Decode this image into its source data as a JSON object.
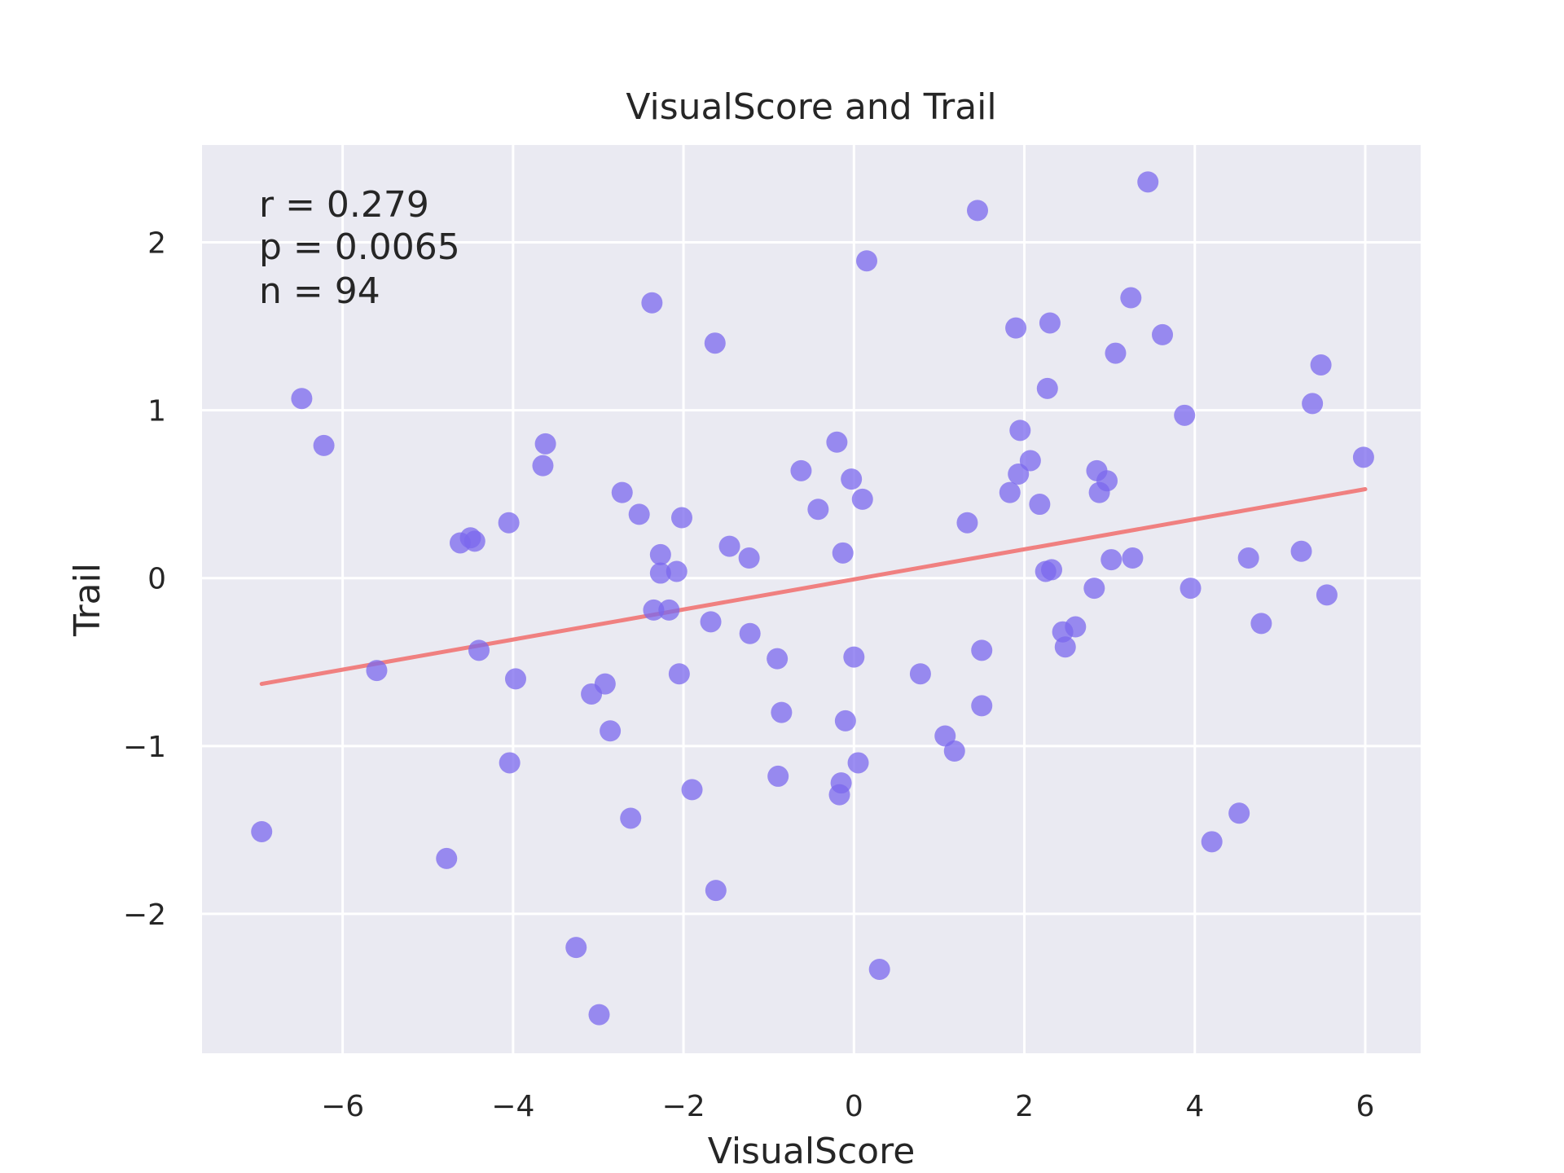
{
  "chart_data": {
    "type": "scatter",
    "title": "VisualScore and Trail",
    "xlabel": "VisualScore",
    "ylabel": "Trail",
    "xlim": [
      -7.65,
      6.65
    ],
    "ylim": [
      -2.83,
      2.58
    ],
    "x_ticks": [
      -6,
      -4,
      -2,
      0,
      2,
      4,
      6
    ],
    "y_ticks": [
      -2,
      -1,
      0,
      1,
      2
    ],
    "x_tick_labels": [
      "−6",
      "−4",
      "−2",
      "0",
      "2",
      "4",
      "6"
    ],
    "y_tick_labels": [
      "−2",
      "−1",
      "0",
      "1",
      "2"
    ],
    "grid": true,
    "point_color": "#7b68ee",
    "line_color": "#f08080",
    "background_color": "#eaeaf2",
    "annotations": [
      "r = 0.279",
      "p = 0.0065",
      "n = 94"
    ],
    "regression_line": {
      "x": [
        -6.95,
        6.0
      ],
      "y": [
        -0.63,
        0.53
      ]
    },
    "points": [
      {
        "x": -6.95,
        "y": -1.51
      },
      {
        "x": -6.48,
        "y": 1.07
      },
      {
        "x": -6.22,
        "y": 0.79
      },
      {
        "x": -5.6,
        "y": -0.55
      },
      {
        "x": -4.78,
        "y": -1.67
      },
      {
        "x": -4.62,
        "y": 0.21
      },
      {
        "x": -4.5,
        "y": 0.24
      },
      {
        "x": -4.45,
        "y": 0.22
      },
      {
        "x": -4.4,
        "y": -0.43
      },
      {
        "x": -4.05,
        "y": 0.33
      },
      {
        "x": -4.04,
        "y": -1.1
      },
      {
        "x": -3.97,
        "y": -0.6
      },
      {
        "x": -3.65,
        "y": 0.67
      },
      {
        "x": -3.62,
        "y": 0.8
      },
      {
        "x": -3.26,
        "y": -2.2
      },
      {
        "x": -3.08,
        "y": -0.69
      },
      {
        "x": -2.99,
        "y": -2.6
      },
      {
        "x": -2.92,
        "y": -0.63
      },
      {
        "x": -2.86,
        "y": -0.91
      },
      {
        "x": -2.72,
        "y": 0.51
      },
      {
        "x": -2.62,
        "y": -1.43
      },
      {
        "x": -2.52,
        "y": 0.38
      },
      {
        "x": -2.37,
        "y": 1.64
      },
      {
        "x": -2.35,
        "y": -0.19
      },
      {
        "x": -2.27,
        "y": 0.14
      },
      {
        "x": -2.27,
        "y": 0.03
      },
      {
        "x": -2.17,
        "y": -0.19
      },
      {
        "x": -2.08,
        "y": 0.04
      },
      {
        "x": -2.05,
        "y": -0.57
      },
      {
        "x": -2.02,
        "y": 0.36
      },
      {
        "x": -1.9,
        "y": -1.26
      },
      {
        "x": -1.68,
        "y": -0.26
      },
      {
        "x": -1.63,
        "y": 1.4
      },
      {
        "x": -1.62,
        "y": -1.86
      },
      {
        "x": -1.46,
        "y": 0.19
      },
      {
        "x": -1.23,
        "y": 0.12
      },
      {
        "x": -1.22,
        "y": -0.33
      },
      {
        "x": -0.9,
        "y": -0.48
      },
      {
        "x": -0.89,
        "y": -1.18
      },
      {
        "x": -0.85,
        "y": -0.8
      },
      {
        "x": -0.62,
        "y": 0.64
      },
      {
        "x": -0.42,
        "y": 0.41
      },
      {
        "x": -0.2,
        "y": 0.81
      },
      {
        "x": -0.17,
        "y": -1.29
      },
      {
        "x": -0.15,
        "y": -1.22
      },
      {
        "x": -0.13,
        "y": 0.15
      },
      {
        "x": -0.1,
        "y": -0.85
      },
      {
        "x": -0.03,
        "y": 0.59
      },
      {
        "x": 0.0,
        "y": -0.47
      },
      {
        "x": 0.05,
        "y": -1.1
      },
      {
        "x": 0.1,
        "y": 0.47
      },
      {
        "x": 0.15,
        "y": 1.89
      },
      {
        "x": 0.3,
        "y": -2.33
      },
      {
        "x": 0.78,
        "y": -0.57
      },
      {
        "x": 1.07,
        "y": -0.94
      },
      {
        "x": 1.18,
        "y": -1.03
      },
      {
        "x": 1.33,
        "y": 0.33
      },
      {
        "x": 1.45,
        "y": 2.19
      },
      {
        "x": 1.5,
        "y": -0.43
      },
      {
        "x": 1.5,
        "y": -0.76
      },
      {
        "x": 1.83,
        "y": 0.51
      },
      {
        "x": 1.9,
        "y": 1.49
      },
      {
        "x": 1.93,
        "y": 0.62
      },
      {
        "x": 1.95,
        "y": 0.88
      },
      {
        "x": 2.07,
        "y": 0.7
      },
      {
        "x": 2.18,
        "y": 0.44
      },
      {
        "x": 2.25,
        "y": 0.04
      },
      {
        "x": 2.27,
        "y": 1.13
      },
      {
        "x": 2.3,
        "y": 1.52
      },
      {
        "x": 2.32,
        "y": 0.05
      },
      {
        "x": 2.45,
        "y": -0.32
      },
      {
        "x": 2.48,
        "y": -0.41
      },
      {
        "x": 2.6,
        "y": -0.29
      },
      {
        "x": 2.82,
        "y": -0.06
      },
      {
        "x": 2.85,
        "y": 0.64
      },
      {
        "x": 2.88,
        "y": 0.51
      },
      {
        "x": 2.97,
        "y": 0.58
      },
      {
        "x": 3.02,
        "y": 0.11
      },
      {
        "x": 3.07,
        "y": 1.34
      },
      {
        "x": 3.25,
        "y": 1.67
      },
      {
        "x": 3.27,
        "y": 0.12
      },
      {
        "x": 3.45,
        "y": 2.36
      },
      {
        "x": 3.62,
        "y": 1.45
      },
      {
        "x": 3.88,
        "y": 0.97
      },
      {
        "x": 3.95,
        "y": -0.06
      },
      {
        "x": 4.2,
        "y": -1.57
      },
      {
        "x": 4.52,
        "y": -1.4
      },
      {
        "x": 4.63,
        "y": 0.12
      },
      {
        "x": 4.78,
        "y": -0.27
      },
      {
        "x": 5.25,
        "y": 0.16
      },
      {
        "x": 5.38,
        "y": 1.04
      },
      {
        "x": 5.48,
        "y": 1.27
      },
      {
        "x": 5.55,
        "y": -0.1
      },
      {
        "x": 5.98,
        "y": 0.72
      }
    ]
  }
}
